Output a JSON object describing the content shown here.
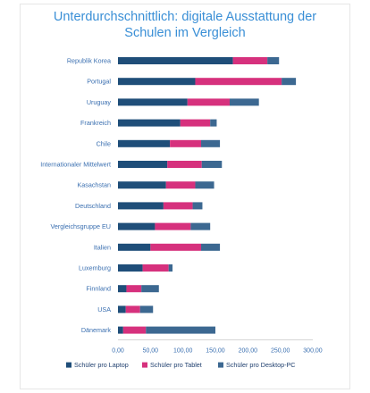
{
  "chart_data": {
    "type": "bar",
    "orientation": "horizontal",
    "stacked": true,
    "title_lines": [
      "Unterdurchschnittlich: digitale Ausstattung der",
      "Schulen im Vergleich"
    ],
    "categories": [
      "Republik Korea",
      "Portugal",
      "Uruguay",
      "Frankreich",
      "Chile",
      "Internationaler Mittelwert",
      "Kasachstan",
      "Deutschland",
      "Vergleichsgruppe EU",
      "Italien",
      "Luxemburg",
      "Finnland",
      "USA",
      "Dänemark"
    ],
    "series": [
      {
        "name": "Schüler pro Laptop",
        "color": "#1f4e79",
        "values": [
          177,
          119,
          107,
          96,
          80,
          76,
          74,
          70,
          57,
          50,
          38,
          13,
          12,
          8
        ]
      },
      {
        "name": "Schüler pro Tablet",
        "color": "#d6317d",
        "values": [
          53,
          133,
          65,
          46,
          48,
          53,
          45,
          45,
          55,
          78,
          40,
          23,
          22,
          35
        ]
      },
      {
        "name": "Schüler pro Desktop-PC",
        "color": "#3c6891",
        "values": [
          18,
          22,
          45,
          10,
          29,
          31,
          29,
          15,
          30,
          29,
          6,
          27,
          20,
          107
        ]
      }
    ],
    "xlim": [
      0,
      300
    ],
    "xticks": [
      "0,00",
      "50,00",
      "100,00",
      "150,00",
      "200,00",
      "250,00",
      "300,00"
    ],
    "grid": false,
    "legend_position": "bottom"
  }
}
